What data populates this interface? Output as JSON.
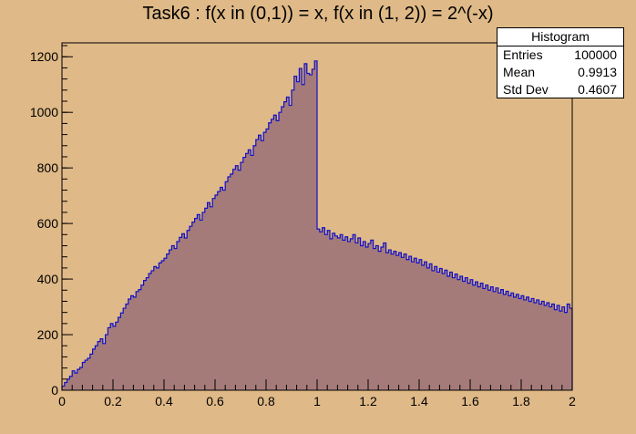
{
  "chart_data": {
    "type": "bar",
    "title": "Task6 : f(x in (0,1)) = x, f(x in (1, 2)) = 2^(-x)",
    "xlabel": "",
    "ylabel": "",
    "xlim": [
      0,
      2
    ],
    "ylim": [
      0,
      1250
    ],
    "x_ticks": [
      "0",
      "0.2",
      "0.4",
      "0.6",
      "0.8",
      "1",
      "1.2",
      "1.4",
      "1.6",
      "1.8",
      "2"
    ],
    "y_ticks": [
      "0",
      "200",
      "400",
      "600",
      "800",
      "1000",
      "1200"
    ],
    "grid": false,
    "legend": "none",
    "bin_width": 0.01,
    "values": [
      15,
      28,
      40,
      50,
      70,
      62,
      75,
      82,
      100,
      108,
      115,
      130,
      148,
      160,
      175,
      185,
      168,
      200,
      225,
      240,
      230,
      245,
      262,
      278,
      295,
      310,
      328,
      340,
      335,
      355,
      362,
      378,
      395,
      405,
      420,
      430,
      445,
      440,
      458,
      466,
      475,
      490,
      505,
      520,
      510,
      535,
      550,
      563,
      548,
      575,
      590,
      605,
      618,
      632,
      612,
      640,
      655,
      675,
      660,
      690,
      702,
      715,
      730,
      720,
      750,
      768,
      778,
      795,
      808,
      792,
      820,
      838,
      852,
      865,
      845,
      880,
      902,
      918,
      898,
      928,
      940,
      962,
      975,
      990,
      970,
      1000,
      1020,
      1038,
      1055,
      1025,
      1080,
      1130,
      1110,
      1158,
      1100,
      1175,
      1140,
      1135,
      1155,
      1185,
      580,
      570,
      585,
      560,
      575,
      545,
      565,
      555,
      548,
      560,
      540,
      552,
      535,
      545,
      560,
      530,
      548,
      520,
      535,
      515,
      528,
      540,
      510,
      520,
      500,
      515,
      530,
      495,
      505,
      490,
      500,
      485,
      495,
      478,
      490,
      470,
      482,
      462,
      475,
      458,
      470,
      450,
      462,
      440,
      455,
      430,
      445,
      425,
      438,
      420,
      432,
      410,
      425,
      405,
      418,
      398,
      410,
      392,
      405,
      385,
      398,
      378,
      390,
      372,
      385,
      366,
      378,
      360,
      372,
      355,
      368,
      350,
      362,
      345,
      356,
      340,
      350,
      335,
      345,
      330,
      340,
      325,
      335,
      320,
      330,
      315,
      325,
      310,
      320,
      305,
      315,
      300,
      310,
      290,
      305,
      285,
      300,
      280,
      310,
      295
    ],
    "fill_color": "#a57b7a",
    "line_color": "#1010c8",
    "stats_box": {
      "title": "Histogram",
      "rows": [
        {
          "label": "Entries",
          "value": "100000"
        },
        {
          "label": "Mean",
          "value": "0.9913"
        },
        {
          "label": "Std Dev",
          "value": "0.4607"
        }
      ],
      "position": "top-right"
    }
  }
}
